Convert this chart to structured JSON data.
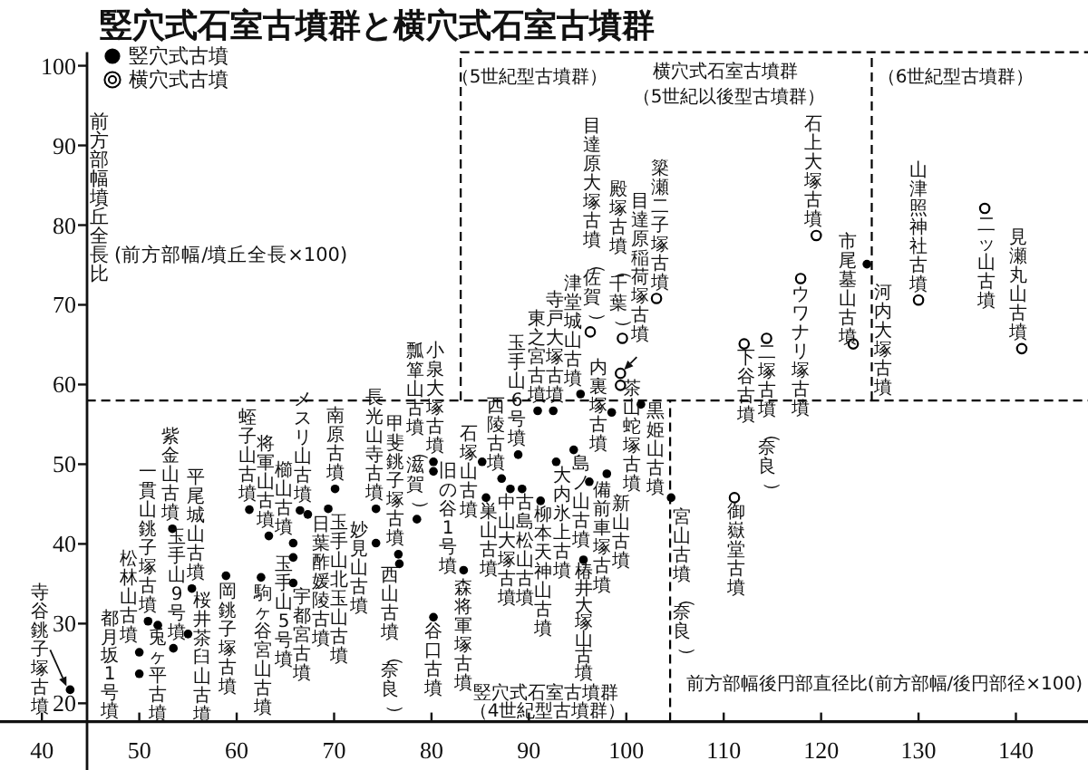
{
  "chart_data": {
    "type": "scatter",
    "title": "竪穴式石室古墳群と横穴式石室古墳群",
    "xlabel": "前方部幅後円部直径比(前方部幅/後円部径×100)",
    "ylabel": "前方部幅墳丘全長比(前方部幅/墳丘全長×100)",
    "xlim": [
      35.7,
      147.4
    ],
    "ylim": [
      17.7,
      101.7
    ],
    "xticks": [
      40,
      50,
      60,
      70,
      80,
      90,
      100,
      110,
      120,
      130,
      140
    ],
    "yticks": [
      20,
      30,
      40,
      50,
      60,
      70,
      80,
      90,
      100
    ],
    "legend": "top left",
    "series": [
      {
        "name": "竪穴式古墳",
        "color": "#000000",
        "marker": "circle",
        "x": [
          42.9,
          50.0,
          50.0,
          50.9,
          51.9,
          53.4,
          53.5,
          55.4,
          55.0,
          58.9,
          61.3,
          63.3,
          65.8,
          65.8,
          62.5,
          66.5,
          67.3,
          65.8,
          70.1,
          69.4,
          74.3,
          74.3,
          76.7,
          76.6,
          78.5,
          80.2,
          80.2,
          80.2,
          83.3,
          85.2,
          85.6,
          87.2,
          88.9,
          90.9,
          92.5,
          88.1,
          89.3,
          91.2,
          92.8,
          94.6,
          96.2,
          95.6,
          98.0,
          98.5,
          101.5,
          104.6,
          95.3,
          124.7
        ],
        "values": [
          21.7,
          23.7,
          26.4,
          30.3,
          29.8,
          41.9,
          26.9,
          34.4,
          28.7,
          36.0,
          44.3,
          41.0,
          40.1,
          38.3,
          35.8,
          44.2,
          43.7,
          35.1,
          46.9,
          44.4,
          40.1,
          44.4,
          37.5,
          38.7,
          43.1,
          50.3,
          49.1,
          30.8,
          36.7,
          50.3,
          45.8,
          48.2,
          51.2,
          56.7,
          56.7,
          46.9,
          46.9,
          45.4,
          50.3,
          51.8,
          47.8,
          38.0,
          48.8,
          56.5,
          57.5,
          45.8,
          58.8,
          75.1
        ],
        "value_labels": [
          "寺谷銚子塚古墳",
          "都月坂1号墳",
          "松林山古墳",
          "一貫山銚子塚古墳",
          "兎ヶ平古墳",
          "紫金山古墳",
          "玉手山9号墳",
          "平尾城山古墳",
          "桜井茶臼山古墳",
          "岡銚子塚古墳",
          "蛭子山古墳",
          "将軍山古墳",
          "櫛山古墳",
          "玉手山5号墳",
          "駒ヶ谷宮山古墳",
          "メスリ山古墳",
          "日葉酢媛陵古墳",
          "宇都宮古墳",
          "南原古墳",
          "玉手山北玉山古墳",
          "妙見山古墳",
          "長光山寺古墳",
          "西山古墳（奈良）",
          "甲斐銚子塚古墳",
          "瓢箪山古墳（滋賀）",
          "小泉大塚古墳",
          "旧の谷1号墳",
          "谷口古墳",
          "森将軍塚古墳",
          "石塚山古墳",
          "巣山古墳",
          "西陵古墳",
          "玉手山6号墳",
          "東之宮古墳",
          "寺戸大塚古墳",
          "中山大塚古墳",
          "古島松山古墳",
          "柳本天神山古墳",
          "大内氷上古墳",
          "島ノ山古墳",
          "備前車塚古墳",
          "椿井大塚山古墳",
          "新山古墳",
          "内裏塚古墳",
          "黒姫山古墳",
          "宮山古墳（奈良）",
          "津堂城山古墳",
          "河内大塚古墳"
        ]
      },
      {
        "name": "横穴式古墳",
        "color": "#000000",
        "marker": "circle",
        "x": [
          96.3,
          99.6,
          99.4,
          99.4,
          103.1,
          112.1,
          114.4,
          111.1,
          117.9,
          119.5,
          123.3,
          130.0,
          136.8,
          140.6
        ],
        "values": [
          66.6,
          65.8,
          61.4,
          59.9,
          70.8,
          65.1,
          65.8,
          45.8,
          73.3,
          78.7,
          65.1,
          70.6,
          82.1,
          64.5
        ],
        "value_labels": [
          "目達原大塚古墳（佐賀）",
          "殿塚古墳（千葉）",
          "目達原稲荷塚古墳",
          "茶山蛇塚古墳",
          "簗瀬二子塚古墳",
          "下谷古墳",
          "二塚古墳（奈良）",
          "御嶽堂古墳",
          "ウワナリ塚古墳",
          "石上大塚古墳",
          "市尾墓山古墳",
          "山津照神社古墳",
          "二ッ山古墳",
          "見瀬丸山古墳"
        ]
      },
      {
        "type": "line",
        "color": "#000000",
        "line_style": "dashed",
        "marker": "none",
        "x": [
          44.6,
          147.4
        ],
        "values": [
          58,
          58
        ]
      },
      {
        "type": "line",
        "color": "#000000",
        "line_style": "dashed",
        "marker": "none",
        "x": [
          83,
          83,
          147.4
        ],
        "values": [
          58,
          101.7,
          101.7
        ]
      },
      {
        "type": "line",
        "color": "#000000",
        "line_style": "dashed",
        "marker": "none",
        "x": [
          104.5,
          104.5
        ],
        "values": [
          17.7,
          58
        ]
      },
      {
        "type": "line",
        "color": "#000000",
        "line_style": "dashed",
        "marker": "none",
        "x": [
          125.2,
          125.2
        ],
        "values": [
          58,
          101.7
        ]
      }
    ],
    "annotations": [
      "（5世紀型古墳群）",
      "横穴式石室古墳群",
      "（5世紀以後型古墳群）",
      "（6世紀型古墳群）",
      "竪穴式石室古墳群",
      "（4世紀型古墳群）"
    ]
  }
}
